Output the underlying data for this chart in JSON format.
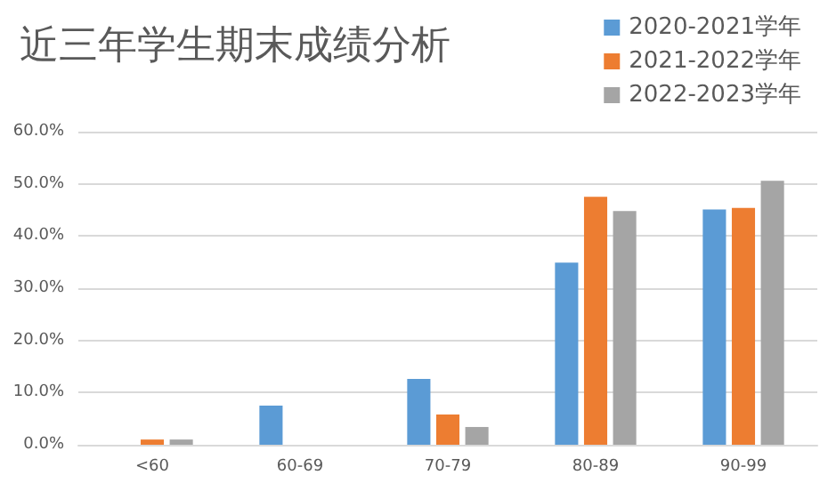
{
  "chart_data": {
    "type": "bar",
    "title": "近三年学生期末成绩分析",
    "categories": [
      "<60",
      "60-69",
      "70-79",
      "80-89",
      "90-99"
    ],
    "series": [
      {
        "name": "2020-2021学年",
        "color": "#5b9bd5",
        "values": [
          0,
          7.5,
          12.6,
          34.9,
          45.1
        ]
      },
      {
        "name": "2021-2022学年",
        "color": "#ed7d31",
        "values": [
          1.0,
          0,
          5.8,
          47.5,
          45.4
        ]
      },
      {
        "name": "2022-2023学年",
        "color": "#a5a5a5",
        "values": [
          1.0,
          0,
          3.4,
          44.8,
          50.6
        ]
      }
    ],
    "ylim": [
      0,
      60
    ],
    "yticks": [
      {
        "value": 0,
        "label": "0.0%"
      },
      {
        "value": 10,
        "label": "10.0%"
      },
      {
        "value": 20,
        "label": "20.0%"
      },
      {
        "value": 30,
        "label": "30.0%"
      },
      {
        "value": 40,
        "label": "40.0%"
      },
      {
        "value": 50,
        "label": "50.0%"
      },
      {
        "value": 60,
        "label": "60.0%"
      }
    ],
    "grid": "y",
    "legend": "top right"
  }
}
